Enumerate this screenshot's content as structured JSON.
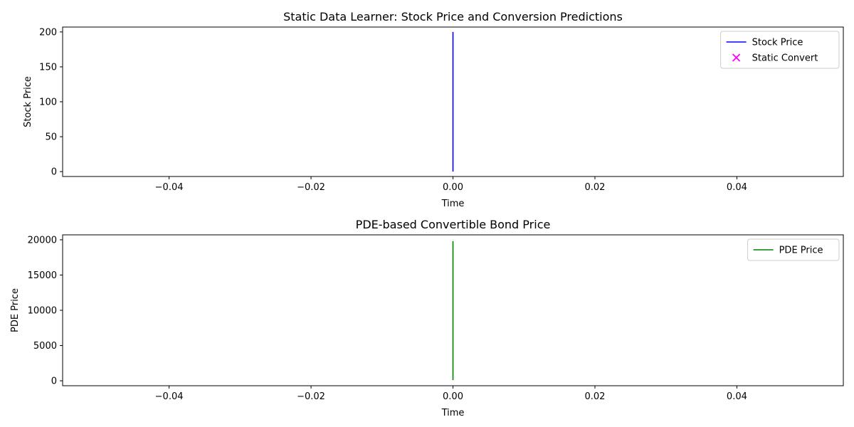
{
  "chart_data": [
    {
      "type": "line",
      "title": "Static Data Learner: Stock Price and Conversion Predictions",
      "xlabel": "Time",
      "ylabel": "Stock Price",
      "xlim": [
        -0.055,
        0.055
      ],
      "ylim": [
        -7,
        207
      ],
      "xticks": [
        -0.04,
        -0.02,
        0.0,
        0.02,
        0.04
      ],
      "xtick_labels": [
        "−0.04",
        "−0.02",
        "0.00",
        "0.02",
        "0.04"
      ],
      "yticks": [
        0,
        50,
        100,
        150,
        200
      ],
      "ytick_labels": [
        "0",
        "50",
        "100",
        "150",
        "200"
      ],
      "grid": false,
      "legend_position": "top-right",
      "series": [
        {
          "name": "Stock Price",
          "kind": "line",
          "color": "#0000ff",
          "x": [
            0.0,
            0.0
          ],
          "y": [
            0,
            200
          ]
        },
        {
          "name": "Static Convert",
          "kind": "scatter",
          "marker": "x",
          "color": "#ff00ff",
          "x": [],
          "y": []
        }
      ]
    },
    {
      "type": "line",
      "title": "PDE-based Convertible Bond Price",
      "xlabel": "Time",
      "ylabel": "PDE Price",
      "xlim": [
        -0.055,
        0.055
      ],
      "ylim": [
        -700,
        20700
      ],
      "xticks": [
        -0.04,
        -0.02,
        0.0,
        0.02,
        0.04
      ],
      "xtick_labels": [
        "−0.04",
        "−0.02",
        "0.00",
        "0.02",
        "0.04"
      ],
      "yticks": [
        0,
        5000,
        10000,
        15000,
        20000
      ],
      "ytick_labels": [
        "0",
        "5000",
        "10000",
        "15000",
        "20000"
      ],
      "grid": false,
      "legend_position": "top-right",
      "series": [
        {
          "name": "PDE Price",
          "kind": "line",
          "color": "#008000",
          "x": [
            0.0,
            0.0
          ],
          "y": [
            100,
            19800
          ]
        }
      ]
    }
  ]
}
